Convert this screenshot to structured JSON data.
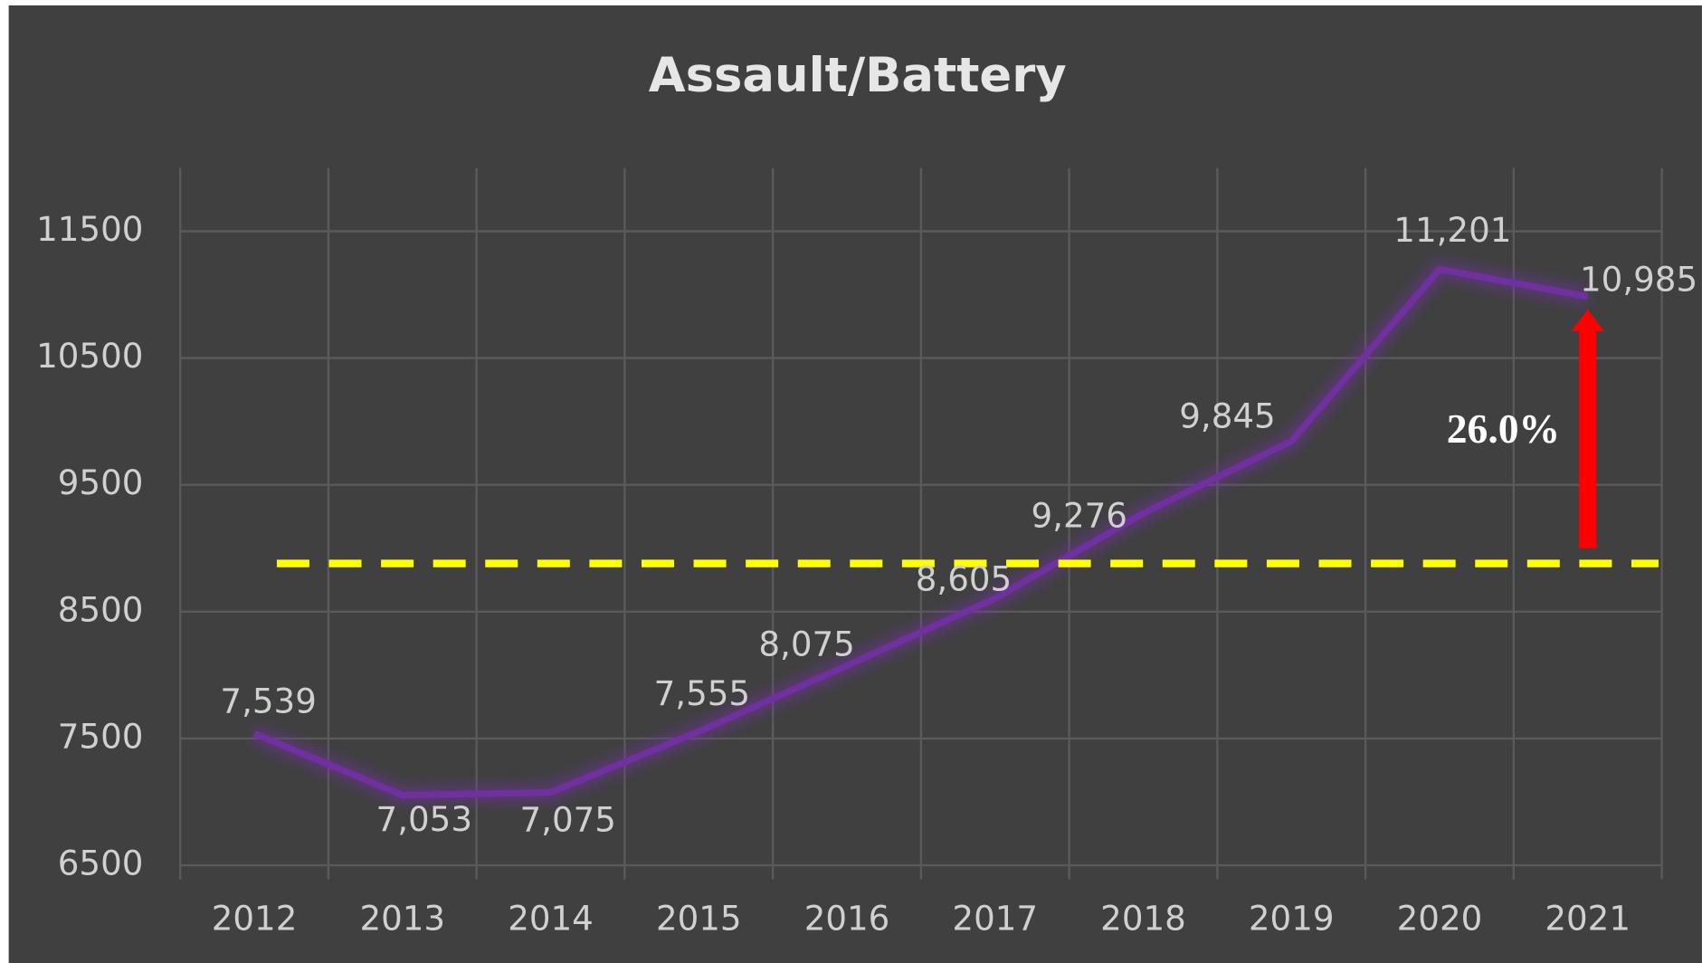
{
  "chart_data": {
    "type": "line",
    "title": "Assault/Battery",
    "categories": [
      "2012",
      "2013",
      "2014",
      "2015",
      "2016",
      "2017",
      "2018",
      "2019",
      "2020",
      "2021"
    ],
    "values": [
      7539,
      7053,
      7075,
      7555,
      8075,
      8605,
      9276,
      9845,
      11201,
      10985
    ],
    "value_labels": [
      "7,539",
      "7,053",
      "7,075",
      "7,555",
      "8,075",
      "8,605",
      "9,276",
      "9,845",
      "11,201",
      "10,985"
    ],
    "color": "#7030a0",
    "ylim": [
      6500,
      12000
    ],
    "yticks": [
      6500,
      7500,
      8500,
      9500,
      10500,
      11500
    ],
    "grid": true,
    "reference_line": {
      "value": 8880,
      "color": "#ffff00"
    },
    "annotation": {
      "text": "26.0%",
      "color": "#ff0000"
    }
  }
}
